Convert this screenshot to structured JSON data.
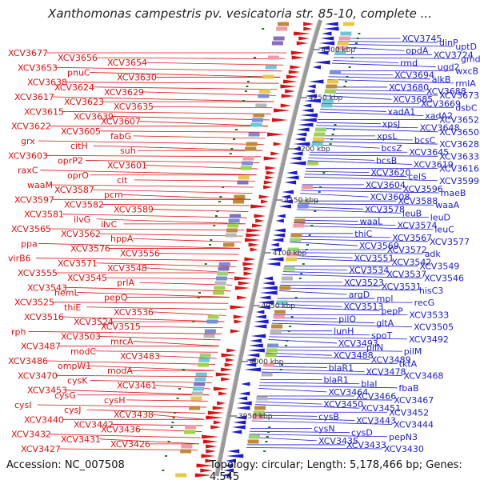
{
  "title": "Xanthomonas campestris pv. vesicatoria str. 85-10, complete ...",
  "colors": {
    "forward": "#e01010",
    "reverse": "#1a1ad6",
    "backbone": "#9a9a9a",
    "tick": "#1a7a1a"
  },
  "scale_labels": [
    "4300 kbp",
    "4250 kbp",
    "4200 kbp",
    "4150 kbp",
    "4100 kbp",
    "4050 kbp",
    "4000 kbp",
    "3950 kbp"
  ],
  "left_labels": [
    "XCV3677",
    "XCV3656",
    "XCV3654",
    "XCV3653",
    "pnuC",
    "XCV3630",
    "XCV3638",
    "XCV3624",
    "XCV3629",
    "XCV3617",
    "XCV3623",
    "XCV3635",
    "XCV3615",
    "XCV3639",
    "XCV3607",
    "XCV3622",
    "XCV3605",
    "fabG",
    "grx",
    "citH",
    "suh",
    "XCV3603",
    "oprP2",
    "XCV3601",
    "raxC",
    "oprO",
    "cit",
    "waaM",
    "XCV3587",
    "pcm",
    "XCV3597",
    "XCV3582",
    "XCV3589",
    "XCV3581",
    "ilvG",
    "ilvC",
    "XCV3565",
    "XCV3562",
    "hppA",
    "ppa",
    "XCV3576",
    "XCV3556",
    "virB6",
    "XCV3571",
    "XCV3548",
    "XCV3555",
    "XCV3545",
    "prlA",
    "XCV3543",
    "hemL",
    "pepQ",
    "XCV3525",
    "thiE",
    "XCV3536",
    "XCV3516",
    "XCV3524",
    "XCV3515",
    "rph",
    "XCV3503",
    "mrcA",
    "XCV3487",
    "modC",
    "XCV3483",
    "XCV3486",
    "ompW1",
    "modA",
    "XCV3470",
    "cysK",
    "XCV3461",
    "XCV3453",
    "cysG",
    "cysH",
    "cysI",
    "cysJ",
    "XCV3438",
    "XCV3440",
    "XCV3442",
    "XCV3436",
    "XCV3432",
    "XCV3431",
    "XCV3426",
    "XCV3427"
  ],
  "right_labels": [
    "XCV3745",
    "dinP",
    "uptD",
    "opdA",
    "XCV3724",
    "gmd",
    "rmd",
    "ugd2",
    "wxcB",
    "XCV3694",
    "alkB",
    "rmlA",
    "XCV3680",
    "XCV3688",
    "XCV3673",
    "XCV3685",
    "XCV3669",
    "dsbC",
    "xadA1",
    "xadA2",
    "XCV3652",
    "xpsJ",
    "XCV3648",
    "XCV3650",
    "xpsL",
    "bcsC",
    "XCV3628",
    "bcsZ",
    "XCV3645",
    "XCV3633",
    "bcsB",
    "XCV3619",
    "XCV3616",
    "XCV3620",
    "celS",
    "XCV3599",
    "XCV3604",
    "XCV3596",
    "maeB",
    "XCV3608",
    "XCV3588",
    "waaA",
    "XCV3578",
    "leuB",
    "leuD",
    "waaL",
    "XCV3574",
    "leuC",
    "thiC",
    "XCV3567",
    "XCV3577",
    "XCV3569",
    "XCV3572",
    "adk",
    "XCV3551",
    "XCV3542",
    "XCV3549",
    "XCV3534",
    "XCV3537",
    "XCV3546",
    "XCV3523",
    "XCV3531",
    "hisC3",
    "argD",
    "mpl",
    "recG",
    "XCV3513",
    "pepP",
    "XCV3533",
    "pilO",
    "gltA",
    "XCV3505",
    "lunH",
    "spoT",
    "XCV3492",
    "XCV3493",
    "pilN",
    "pilM",
    "XCV3488",
    "XCV3489",
    "tktA",
    "blaR1",
    "XCV3478",
    "XCV3468",
    "blaR1",
    "blaI",
    "fbaB",
    "XCV3464",
    "XCV3466",
    "XCV3467",
    "XCV3450",
    "XCV3451",
    "XCV3452",
    "cysB",
    "XCV3443",
    "XCV3444",
    "cysN",
    "cysD",
    "pepN3",
    "XCV3435",
    "XCV3433",
    "XCV3430"
  ],
  "footer": {
    "accession": "Accession: NC_007508",
    "topology": "Topology: circular; Length: 5,178,466 bp; Genes: 4,545"
  }
}
